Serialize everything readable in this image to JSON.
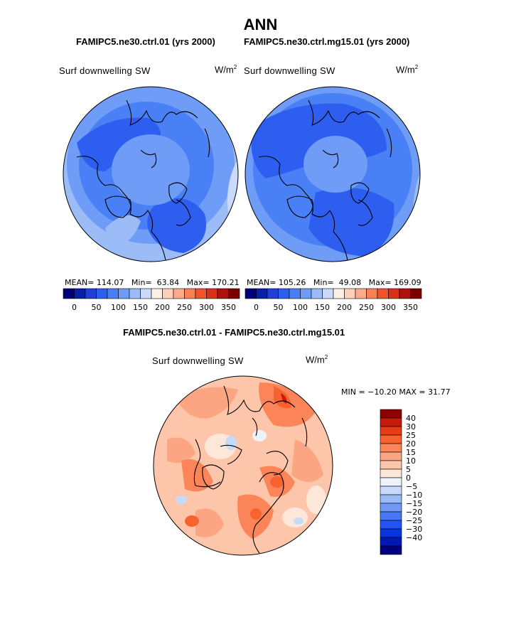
{
  "figure": {
    "title": "ANN",
    "diff_title": "FAMIPC5.ne30.ctrl.01 - FAMIPC5.ne30.ctrl.mg15.01"
  },
  "colors": {
    "abs_scale": [
      "#00007a",
      "#0a1fa8",
      "#1f3fd6",
      "#2e5ef0",
      "#4a80f5",
      "#6e9cf7",
      "#9cbcf8",
      "#c9dafc",
      "#fff0e6",
      "#fdd0b8",
      "#fbab8a",
      "#f88058",
      "#f0542e",
      "#d9301a",
      "#b01010",
      "#7a0000"
    ],
    "diff_scale": [
      "#000080",
      "#0019b3",
      "#0733e0",
      "#2254f5",
      "#4777f5",
      "#7199f7",
      "#9bbaf8",
      "#c6daf9",
      "#eef3fb",
      "#fde7d9",
      "#fdc6aa",
      "#fca582",
      "#fb8559",
      "#f7622f",
      "#e83b15",
      "#c51b0a",
      "#8f0000"
    ]
  },
  "chart_data": [
    {
      "type": "heatmap",
      "projection": "polar-stereographic-north",
      "case": "FAMIPC5.ne30.ctrl.01 (yrs 2000)",
      "variable": "Surf downwelling SW",
      "units": "W/m2",
      "units_base": "W/m",
      "units_exp": "2",
      "mean_label": "MEAN=",
      "mean": "114.07",
      "min_label": "Min=",
      "min": "63.84",
      "max_label": "Max=",
      "max": "170.21",
      "colorbar_ticks": [
        "0",
        "50",
        "100",
        "150",
        "200",
        "250",
        "300",
        "350"
      ]
    },
    {
      "type": "heatmap",
      "projection": "polar-stereographic-north",
      "case": "FAMIPC5.ne30.ctrl.mg15.01 (yrs 2000)",
      "variable": "Surf downwelling SW",
      "units": "W/m2",
      "units_base": "W/m",
      "units_exp": "2",
      "mean_label": "MEAN=",
      "mean": "105.26",
      "min_label": "Min=",
      "min": "49.08",
      "max_label": "Max=",
      "max": "169.09",
      "colorbar_ticks": [
        "0",
        "50",
        "100",
        "150",
        "200",
        "250",
        "300",
        "350"
      ]
    },
    {
      "type": "heatmap",
      "projection": "polar-stereographic-north",
      "variable": "Surf downwelling SW",
      "units": "W/m2",
      "units_base": "W/m",
      "units_exp": "2",
      "min_label": "MIN =",
      "min": "-10.20",
      "max_label": "MAX =",
      "max": "31.77",
      "stats_text": "MIN = −10.20 MAX =  31.77",
      "colorbar_ticks": [
        "40",
        "30",
        "25",
        "20",
        "15",
        "10",
        "5",
        "0",
        "−5",
        "−10",
        "−15",
        "−20",
        "−25",
        "−30",
        "−40"
      ]
    }
  ]
}
